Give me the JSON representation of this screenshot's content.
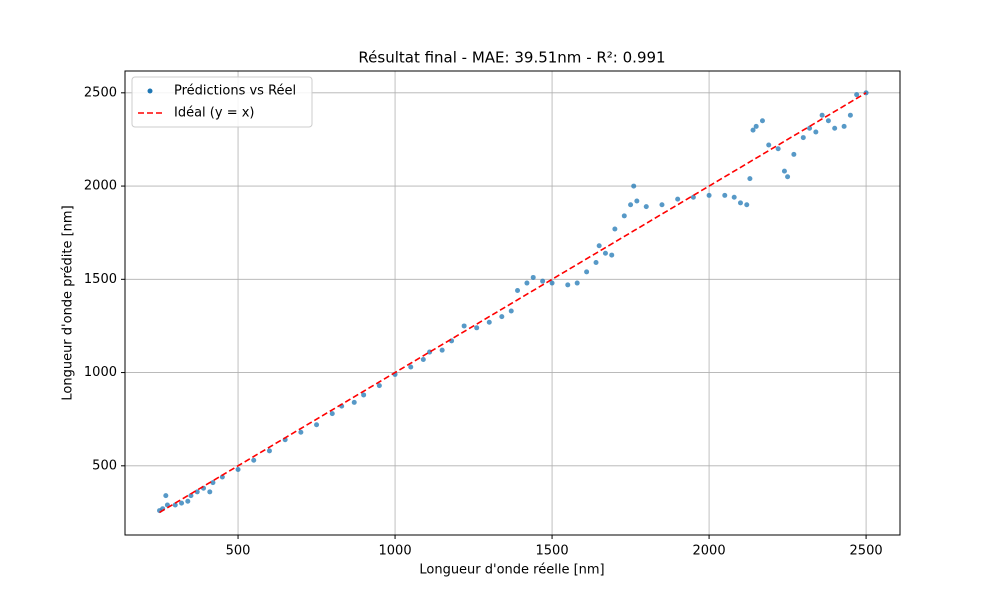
{
  "chart_data": {
    "type": "scatter",
    "title": "Résultat final - MAE: 39.51nm - R²: 0.991",
    "x_label": "Longueur d'onde réelle [nm]",
    "y_label": "Longueur d'onde prédite [nm]",
    "xlim": [
      140,
      2608
    ],
    "ylim": [
      129,
      2617
    ],
    "xticks": [
      500,
      1000,
      1500,
      2000,
      2500
    ],
    "yticks": [
      500,
      1000,
      1500,
      2000,
      2500
    ],
    "grid": true,
    "legend": "upper left",
    "series": [
      {
        "name": "Prédictions vs Réel",
        "color": "#1f77b4",
        "kind": "points",
        "x": [
          250,
          260,
          270,
          275,
          300,
          320,
          340,
          350,
          370,
          390,
          410,
          420,
          450,
          500,
          550,
          600,
          650,
          700,
          750,
          800,
          830,
          870,
          900,
          950,
          1000,
          1050,
          1090,
          1110,
          1150,
          1180,
          1220,
          1260,
          1300,
          1340,
          1370,
          1390,
          1420,
          1440,
          1470,
          1500,
          1550,
          1580,
          1610,
          1640,
          1650,
          1670,
          1690,
          1700,
          1730,
          1750,
          1760,
          1770,
          1800,
          1850,
          1900,
          1950,
          2000,
          2050,
          2080,
          2100,
          2120,
          2130,
          2140,
          2150,
          2170,
          2190,
          2220,
          2240,
          2250,
          2270,
          2300,
          2320,
          2340,
          2360,
          2380,
          2400,
          2430,
          2450,
          2470,
          2500
        ],
        "values": [
          260,
          270,
          340,
          290,
          290,
          300,
          310,
          340,
          360,
          380,
          360,
          410,
          440,
          480,
          530,
          580,
          640,
          680,
          720,
          780,
          820,
          840,
          880,
          930,
          990,
          1030,
          1070,
          1110,
          1120,
          1170,
          1250,
          1240,
          1270,
          1300,
          1330,
          1440,
          1480,
          1510,
          1490,
          1480,
          1470,
          1480,
          1540,
          1590,
          1680,
          1640,
          1630,
          1770,
          1840,
          1900,
          2000,
          1920,
          1890,
          1900,
          1930,
          1940,
          1950,
          1950,
          1940,
          1910,
          1900,
          2040,
          2300,
          2320,
          2350,
          2220,
          2200,
          2080,
          2050,
          2170,
          2260,
          2310,
          2290,
          2380,
          2350,
          2310,
          2320,
          2380,
          2490,
          2500
        ]
      },
      {
        "name": "Idéal (y = x)",
        "color": "#ff0000",
        "kind": "dashed-line",
        "x": [
          250,
          2500
        ],
        "values": [
          250,
          2500
        ]
      }
    ]
  }
}
